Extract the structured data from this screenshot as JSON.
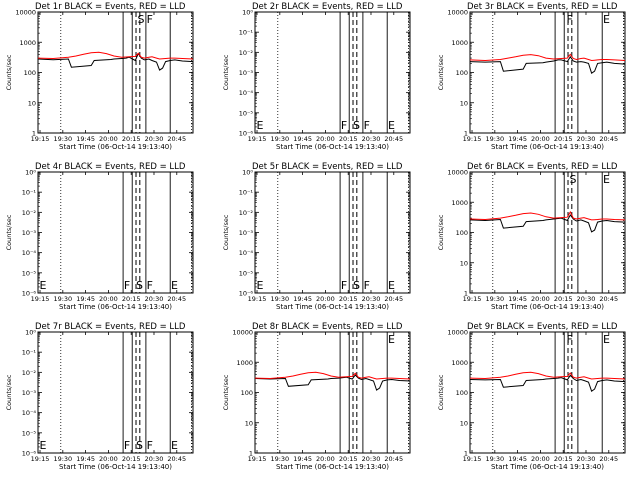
{
  "page": {
    "x_label": "Start Time (06-Oct-14 19:13:40)",
    "y_label": "Counts/sec",
    "colors": {
      "events": "#000000",
      "lld": "#ff0000",
      "axes": "#000000",
      "background": "#ffffff"
    }
  },
  "chart_data": [
    {
      "type": "line",
      "title": "Det 1r BLACK = Events, RED = LLD",
      "xlabel": "Start Time (06-Oct-14 19:13:40)",
      "ylabel": "Counts/sec",
      "x_ticks": [
        "19:15",
        "19:30",
        "19:45",
        "20:00",
        "20:15",
        "20:30",
        "20:45"
      ],
      "x_range_minutes": [
        0,
        102
      ],
      "y_scale": "log",
      "ylim": [
        1,
        10000
      ],
      "y_ticks": [
        "1",
        "10",
        "100",
        "1000",
        "10000"
      ],
      "series": [
        {
          "color": "#000000",
          "x": [
            0,
            10,
            20,
            22,
            35,
            37,
            48,
            50,
            55,
            58,
            60,
            64,
            66,
            68,
            70,
            73,
            75,
            78,
            80,
            82,
            84,
            87,
            90,
            95,
            102
          ],
          "y": [
            280,
            265,
            280,
            150,
            170,
            250,
            270,
            280,
            290,
            300,
            320,
            250,
            420,
            300,
            260,
            280,
            250,
            220,
            120,
            140,
            230,
            250,
            260,
            240,
            230
          ]
        },
        {
          "color": "#ff0000",
          "x": [
            0,
            10,
            20,
            25,
            30,
            35,
            40,
            45,
            50,
            55,
            60,
            64,
            66,
            68,
            70,
            73,
            75,
            78,
            80,
            82,
            84,
            87,
            90,
            95,
            102
          ],
          "y": [
            300,
            290,
            320,
            350,
            400,
            450,
            470,
            420,
            350,
            320,
            330,
            340,
            430,
            320,
            300,
            320,
            330,
            300,
            280,
            285,
            290,
            300,
            300,
            290,
            280
          ]
        }
      ],
      "vlines_solid_minutes": [
        56,
        62,
        71,
        87
      ],
      "vlines_dashed_minutes": [
        64.5,
        67
      ],
      "vlines_dotted_minutes": [
        15,
        101
      ],
      "annotations": [
        {
          "text": "S",
          "x": 65.5,
          "pos": "top"
        },
        {
          "text": "F",
          "x": 71.5,
          "pos": "top"
        }
      ]
    },
    {
      "type": "line",
      "title": "Det 2r BLACK = Events, RED = LLD",
      "xlabel": "Start Time (06-Oct-14 19:13:40)",
      "ylabel": "Counts/sec",
      "x_ticks": [
        "19:15",
        "19:30",
        "19:45",
        "20:00",
        "20:15",
        "20:30",
        "20:45"
      ],
      "x_range_minutes": [
        0,
        102
      ],
      "y_scale": "log",
      "ylim": [
        1e-06,
        1
      ],
      "y_ticks": [
        "10⁰",
        "10⁻¹",
        "10⁻²",
        "10⁻³",
        "10⁻⁴",
        "10⁻⁵",
        "10⁻⁶"
      ],
      "series": [],
      "vlines_solid_minutes": [
        56,
        62,
        71,
        87
      ],
      "vlines_dashed_minutes": [
        64.5,
        67
      ],
      "vlines_dotted_minutes": [
        15,
        101
      ],
      "annotations": [
        {
          "text": "E",
          "x": 1,
          "pos": "bottom"
        },
        {
          "text": "F",
          "x": 56.5,
          "pos": "bottom"
        },
        {
          "text": "S",
          "x": 64.5,
          "pos": "bottom"
        },
        {
          "text": "F",
          "x": 71.5,
          "pos": "bottom"
        },
        {
          "text": "E",
          "x": 87.5,
          "pos": "bottom"
        }
      ]
    },
    {
      "type": "line",
      "title": "Det 3r BLACK = Events, RED = LLD",
      "xlabel": "Start Time (06-Oct-14 19:13:40)",
      "ylabel": "Counts/sec",
      "x_ticks": [
        "19:15",
        "19:30",
        "19:45",
        "20:00",
        "20:15",
        "20:30",
        "20:45"
      ],
      "x_range_minutes": [
        0,
        102
      ],
      "y_scale": "log",
      "ylim": [
        1,
        10000
      ],
      "y_ticks": [
        "1",
        "10",
        "100",
        "1000",
        "10000"
      ],
      "series": [
        {
          "color": "#000000",
          "x": [
            0,
            10,
            20,
            22,
            35,
            37,
            48,
            50,
            55,
            58,
            60,
            64,
            66,
            68,
            70,
            73,
            75,
            78,
            80,
            82,
            84,
            87,
            90,
            95,
            102
          ],
          "y": [
            230,
            220,
            230,
            110,
            130,
            200,
            210,
            220,
            240,
            260,
            260,
            230,
            330,
            240,
            220,
            230,
            220,
            200,
            95,
            110,
            200,
            210,
            220,
            200,
            190
          ]
        },
        {
          "color": "#ff0000",
          "x": [
            0,
            10,
            20,
            25,
            30,
            35,
            40,
            45,
            50,
            55,
            60,
            64,
            66,
            68,
            70,
            73,
            75,
            78,
            80,
            82,
            84,
            87,
            90,
            95,
            102
          ],
          "y": [
            260,
            250,
            270,
            300,
            330,
            370,
            390,
            360,
            300,
            280,
            290,
            300,
            400,
            290,
            270,
            290,
            300,
            270,
            250,
            255,
            260,
            270,
            270,
            260,
            250
          ]
        }
      ],
      "vlines_solid_minutes": [
        56,
        62,
        71,
        87
      ],
      "vlines_dashed_minutes": [
        64.5,
        67
      ],
      "vlines_dotted_minutes": [
        15,
        101
      ],
      "annotations": [
        {
          "text": "F",
          "x": 63.5,
          "pos": "top"
        },
        {
          "text": "E",
          "x": 87.5,
          "pos": "top"
        }
      ]
    },
    {
      "type": "line",
      "title": "Det 4r BLACK = Events, RED = LLD",
      "xlabel": "Start Time (06-Oct-14 19:13:40)",
      "ylabel": "Counts/sec",
      "x_ticks": [
        "19:15",
        "19:30",
        "19:45",
        "20:00",
        "20:15",
        "20:30",
        "20:45"
      ],
      "x_range_minutes": [
        0,
        102
      ],
      "y_scale": "log",
      "ylim": [
        1e-06,
        1
      ],
      "y_ticks": [
        "10⁰",
        "10⁻¹",
        "10⁻²",
        "10⁻³",
        "10⁻⁴",
        "10⁻⁵",
        "10⁻⁶"
      ],
      "series": [],
      "vlines_solid_minutes": [
        56,
        62,
        71,
        87
      ],
      "vlines_dashed_minutes": [
        64.5,
        67
      ],
      "vlines_dotted_minutes": [
        15,
        101
      ],
      "annotations": [
        {
          "text": "E",
          "x": 1,
          "pos": "bottom"
        },
        {
          "text": "F",
          "x": 56.5,
          "pos": "bottom"
        },
        {
          "text": "S",
          "x": 64.5,
          "pos": "bottom"
        },
        {
          "text": "F",
          "x": 71.5,
          "pos": "bottom"
        },
        {
          "text": "E",
          "x": 87.5,
          "pos": "bottom"
        }
      ]
    },
    {
      "type": "line",
      "title": "Det 5r BLACK = Events, RED = LLD",
      "xlabel": "Start Time (06-Oct-14 19:13:40)",
      "ylabel": "Counts/sec",
      "x_ticks": [
        "19:15",
        "19:30",
        "19:45",
        "20:00",
        "20:15",
        "20:30",
        "20:45"
      ],
      "x_range_minutes": [
        0,
        102
      ],
      "y_scale": "log",
      "ylim": [
        1e-06,
        1
      ],
      "y_ticks": [
        "10⁰",
        "10⁻¹",
        "10⁻²",
        "10⁻³",
        "10⁻⁴",
        "10⁻⁵",
        "10⁻⁶"
      ],
      "series": [],
      "vlines_solid_minutes": [
        56,
        62,
        71,
        87
      ],
      "vlines_dashed_minutes": [
        64.5,
        67
      ],
      "vlines_dotted_minutes": [
        15,
        101
      ],
      "annotations": [
        {
          "text": "E",
          "x": 1,
          "pos": "bottom"
        },
        {
          "text": "F",
          "x": 56.5,
          "pos": "bottom"
        },
        {
          "text": "S",
          "x": 64.5,
          "pos": "bottom"
        },
        {
          "text": "F",
          "x": 71.5,
          "pos": "bottom"
        },
        {
          "text": "E",
          "x": 87.5,
          "pos": "bottom"
        }
      ]
    },
    {
      "type": "line",
      "title": "Det 6r BLACK = Events, RED = LLD",
      "xlabel": "Start Time (06-Oct-14 19:13:40)",
      "ylabel": "Counts/sec",
      "x_ticks": [
        "19:15",
        "19:30",
        "19:45",
        "20:00",
        "20:15",
        "20:30",
        "20:45"
      ],
      "x_range_minutes": [
        0,
        102
      ],
      "y_scale": "log",
      "ylim": [
        1,
        10000
      ],
      "y_ticks": [
        "1",
        "10",
        "100",
        "1000",
        "10000"
      ],
      "series": [
        {
          "color": "#000000",
          "x": [
            0,
            10,
            20,
            22,
            35,
            37,
            48,
            50,
            55,
            58,
            60,
            64,
            66,
            68,
            70,
            73,
            75,
            78,
            80,
            82,
            84,
            87,
            90,
            95,
            102
          ],
          "y": [
            260,
            250,
            270,
            140,
            160,
            230,
            250,
            260,
            280,
            290,
            300,
            250,
            380,
            280,
            240,
            260,
            240,
            210,
            105,
            120,
            220,
            240,
            250,
            230,
            220
          ]
        },
        {
          "color": "#ff0000",
          "x": [
            0,
            10,
            20,
            25,
            30,
            35,
            40,
            45,
            50,
            55,
            60,
            64,
            66,
            68,
            70,
            73,
            75,
            78,
            80,
            82,
            84,
            87,
            90,
            95,
            102
          ],
          "y": [
            280,
            270,
            300,
            330,
            370,
            420,
            440,
            400,
            330,
            300,
            310,
            320,
            480,
            300,
            280,
            300,
            310,
            280,
            260,
            265,
            270,
            280,
            280,
            270,
            260
          ]
        }
      ],
      "vlines_solid_minutes": [
        56,
        62,
        71,
        87
      ],
      "vlines_dashed_minutes": [
        64.5,
        67
      ],
      "vlines_dotted_minutes": [
        15,
        101
      ],
      "annotations": [
        {
          "text": "S",
          "x": 65.5,
          "pos": "top"
        },
        {
          "text": "E",
          "x": 87.5,
          "pos": "top"
        }
      ]
    },
    {
      "type": "line",
      "title": "Det 7r BLACK = Events, RED = LLD",
      "xlabel": "Start Time (06-Oct-14 19:13:40)",
      "ylabel": "Counts/sec",
      "x_ticks": [
        "19:15",
        "19:30",
        "19:45",
        "20:00",
        "20:15",
        "20:30",
        "20:45"
      ],
      "x_range_minutes": [
        0,
        102
      ],
      "y_scale": "log",
      "ylim": [
        1e-06,
        1
      ],
      "y_ticks": [
        "10⁰",
        "10⁻¹",
        "10⁻²",
        "10⁻³",
        "10⁻⁴",
        "10⁻⁵",
        "10⁻⁶"
      ],
      "series": [],
      "vlines_solid_minutes": [
        56,
        62,
        71,
        87
      ],
      "vlines_dashed_minutes": [
        64.5,
        67
      ],
      "vlines_dotted_minutes": [
        15,
        101
      ],
      "annotations": [
        {
          "text": "E",
          "x": 1,
          "pos": "bottom"
        },
        {
          "text": "F",
          "x": 56.5,
          "pos": "bottom"
        },
        {
          "text": "S",
          "x": 64.5,
          "pos": "bottom"
        },
        {
          "text": "F",
          "x": 71.5,
          "pos": "bottom"
        },
        {
          "text": "E",
          "x": 87.5,
          "pos": "bottom"
        }
      ]
    },
    {
      "type": "line",
      "title": "Det 8r BLACK = Events, RED = LLD",
      "xlabel": "Start Time (06-Oct-14 19:13:40)",
      "ylabel": "Counts/sec",
      "x_ticks": [
        "19:15",
        "19:30",
        "19:45",
        "20:00",
        "20:15",
        "20:30",
        "20:45"
      ],
      "x_range_minutes": [
        0,
        102
      ],
      "y_scale": "log",
      "ylim": [
        1,
        10000
      ],
      "y_ticks": [
        "1",
        "10",
        "100",
        "1000",
        "10000"
      ],
      "series": [
        {
          "color": "#000000",
          "x": [
            0,
            10,
            20,
            22,
            35,
            37,
            48,
            50,
            55,
            58,
            60,
            64,
            66,
            68,
            70,
            73,
            75,
            78,
            80,
            82,
            84,
            87,
            90,
            95,
            102
          ],
          "y": [
            290,
            280,
            290,
            160,
            180,
            260,
            280,
            290,
            300,
            310,
            320,
            280,
            380,
            300,
            270,
            290,
            270,
            240,
            120,
            140,
            240,
            260,
            270,
            250,
            240
          ]
        },
        {
          "color": "#ff0000",
          "x": [
            0,
            10,
            20,
            25,
            30,
            35,
            40,
            45,
            50,
            55,
            60,
            64,
            66,
            68,
            70,
            73,
            75,
            78,
            80,
            82,
            84,
            87,
            90,
            95,
            102
          ],
          "y": [
            300,
            290,
            320,
            350,
            400,
            450,
            470,
            420,
            350,
            320,
            330,
            340,
            430,
            320,
            300,
            320,
            330,
            300,
            280,
            285,
            290,
            300,
            300,
            290,
            280
          ]
        }
      ],
      "vlines_solid_minutes": [
        56,
        62,
        71,
        87
      ],
      "vlines_dashed_minutes": [
        64.5,
        67
      ],
      "vlines_dotted_minutes": [
        15,
        101
      ],
      "annotations": [
        {
          "text": "E",
          "x": 87.5,
          "pos": "top"
        }
      ]
    },
    {
      "type": "line",
      "title": "Det 9r BLACK = Events, RED = LLD",
      "xlabel": "Start Time (06-Oct-14 19:13:40)",
      "ylabel": "Counts/sec",
      "x_ticks": [
        "19:15",
        "19:30",
        "19:45",
        "20:00",
        "20:15",
        "20:30",
        "20:45"
      ],
      "x_range_minutes": [
        0,
        102
      ],
      "y_scale": "log",
      "ylim": [
        1,
        10000
      ],
      "y_ticks": [
        "1",
        "10",
        "100",
        "1000",
        "10000"
      ],
      "series": [
        {
          "color": "#000000",
          "x": [
            0,
            10,
            20,
            22,
            35,
            37,
            48,
            50,
            55,
            58,
            60,
            64,
            66,
            68,
            70,
            73,
            75,
            78,
            80,
            82,
            84,
            87,
            90,
            95,
            102
          ],
          "y": [
            270,
            260,
            270,
            150,
            170,
            250,
            270,
            280,
            290,
            300,
            310,
            260,
            370,
            290,
            250,
            270,
            250,
            220,
            110,
            130,
            230,
            250,
            260,
            240,
            230
          ]
        },
        {
          "color": "#ff0000",
          "x": [
            0,
            10,
            20,
            25,
            30,
            35,
            40,
            45,
            50,
            55,
            60,
            64,
            66,
            68,
            70,
            73,
            75,
            78,
            80,
            82,
            84,
            87,
            90,
            95,
            102
          ],
          "y": [
            300,
            290,
            320,
            350,
            400,
            450,
            470,
            420,
            350,
            320,
            330,
            340,
            440,
            320,
            300,
            320,
            330,
            300,
            280,
            285,
            290,
            300,
            300,
            290,
            280
          ]
        }
      ],
      "vlines_solid_minutes": [
        56,
        62,
        71,
        87
      ],
      "vlines_dashed_minutes": [
        64.5,
        67
      ],
      "vlines_dotted_minutes": [
        15,
        101
      ],
      "annotations": [
        {
          "text": "F",
          "x": 63.5,
          "pos": "top"
        },
        {
          "text": "E",
          "x": 87.5,
          "pos": "top"
        }
      ]
    }
  ]
}
